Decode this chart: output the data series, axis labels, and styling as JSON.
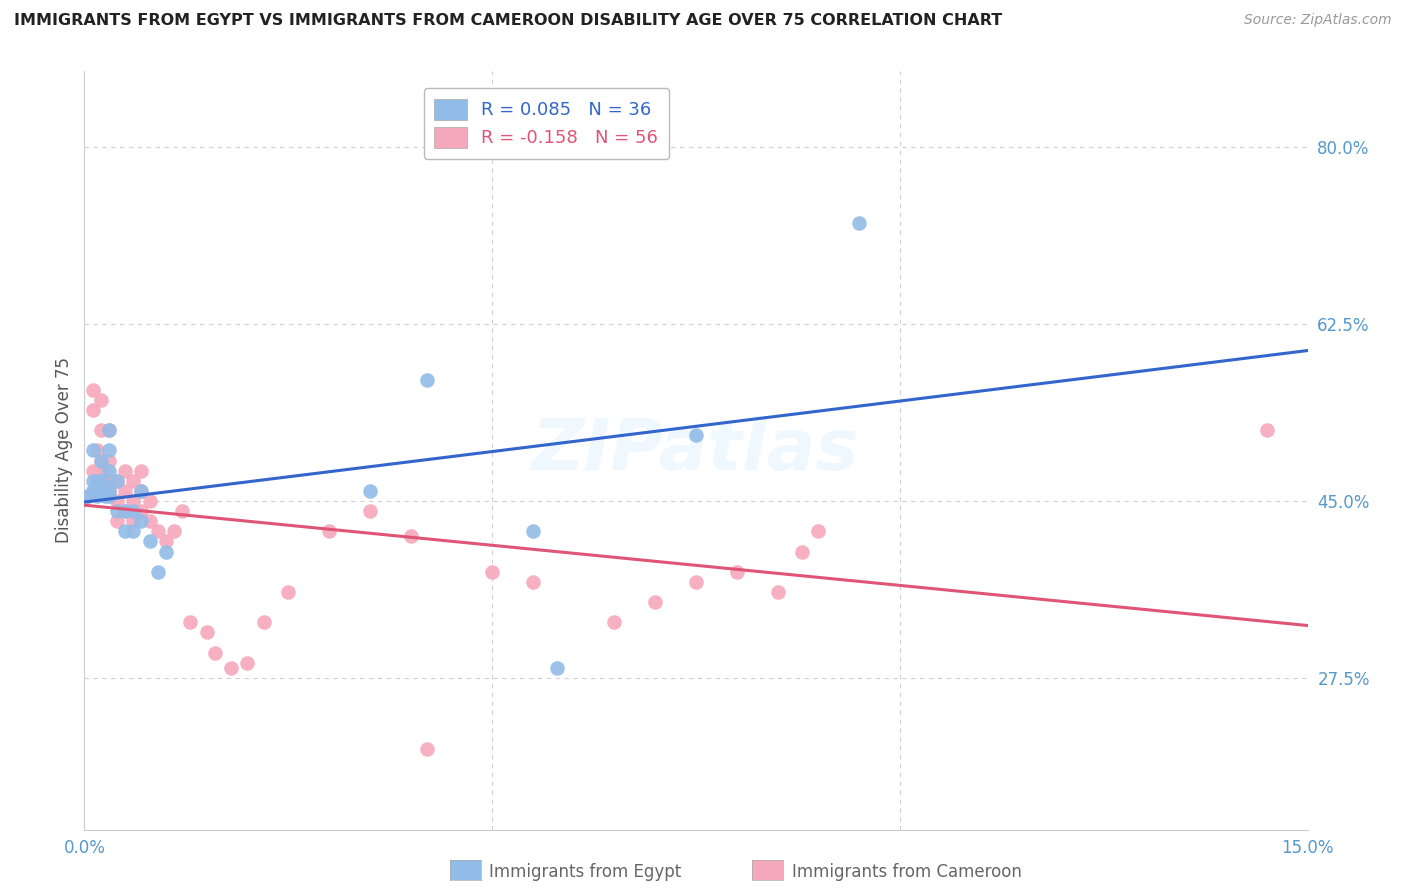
{
  "title": "IMMIGRANTS FROM EGYPT VS IMMIGRANTS FROM CAMEROON DISABILITY AGE OVER 75 CORRELATION CHART",
  "source": "Source: ZipAtlas.com",
  "ylabel": "Disability Age Over 75",
  "xlim": [
    0.0,
    0.15
  ],
  "ylim": [
    0.125,
    0.875
  ],
  "ytick_positions_right": [
    0.8,
    0.625,
    0.45,
    0.275
  ],
  "ytick_labels_right": [
    "80.0%",
    "62.5%",
    "45.0%",
    "27.5%"
  ],
  "grid_color": "#d0d0d0",
  "background_color": "#ffffff",
  "egypt_color": "#92bce8",
  "cameroon_color": "#f5a8bc",
  "egypt_line_color": "#3366cc",
  "cameroon_line_color": "#e05575",
  "egypt_x": [
    0.0005,
    0.001,
    0.001,
    0.001,
    0.001,
    0.0015,
    0.0015,
    0.0015,
    0.002,
    0.002,
    0.002,
    0.002,
    0.0025,
    0.0025,
    0.003,
    0.003,
    0.003,
    0.003,
    0.003,
    0.004,
    0.004,
    0.005,
    0.005,
    0.006,
    0.006,
    0.007,
    0.007,
    0.008,
    0.009,
    0.01,
    0.035,
    0.042,
    0.055,
    0.058,
    0.075,
    0.095
  ],
  "egypt_y": [
    0.455,
    0.46,
    0.46,
    0.47,
    0.5,
    0.455,
    0.46,
    0.47,
    0.46,
    0.46,
    0.47,
    0.49,
    0.455,
    0.465,
    0.455,
    0.46,
    0.48,
    0.5,
    0.52,
    0.44,
    0.47,
    0.42,
    0.44,
    0.42,
    0.44,
    0.43,
    0.46,
    0.41,
    0.38,
    0.4,
    0.46,
    0.57,
    0.42,
    0.285,
    0.515,
    0.725
  ],
  "cameroon_x": [
    0.0005,
    0.001,
    0.001,
    0.001,
    0.001,
    0.0015,
    0.0015,
    0.002,
    0.002,
    0.002,
    0.002,
    0.0025,
    0.0025,
    0.003,
    0.003,
    0.003,
    0.003,
    0.004,
    0.004,
    0.004,
    0.005,
    0.005,
    0.005,
    0.006,
    0.006,
    0.006,
    0.007,
    0.007,
    0.007,
    0.008,
    0.008,
    0.009,
    0.01,
    0.011,
    0.012,
    0.013,
    0.015,
    0.016,
    0.018,
    0.02,
    0.022,
    0.025,
    0.03,
    0.035,
    0.04,
    0.042,
    0.05,
    0.055,
    0.065,
    0.07,
    0.075,
    0.08,
    0.085,
    0.088,
    0.09,
    0.145
  ],
  "cameroon_y": [
    0.455,
    0.46,
    0.48,
    0.54,
    0.56,
    0.47,
    0.5,
    0.47,
    0.49,
    0.52,
    0.55,
    0.47,
    0.48,
    0.46,
    0.47,
    0.49,
    0.52,
    0.43,
    0.45,
    0.47,
    0.44,
    0.46,
    0.48,
    0.43,
    0.45,
    0.47,
    0.44,
    0.46,
    0.48,
    0.43,
    0.45,
    0.42,
    0.41,
    0.42,
    0.44,
    0.33,
    0.32,
    0.3,
    0.285,
    0.29,
    0.33,
    0.36,
    0.42,
    0.44,
    0.415,
    0.205,
    0.38,
    0.37,
    0.33,
    0.35,
    0.37,
    0.38,
    0.36,
    0.4,
    0.42,
    0.52
  ]
}
